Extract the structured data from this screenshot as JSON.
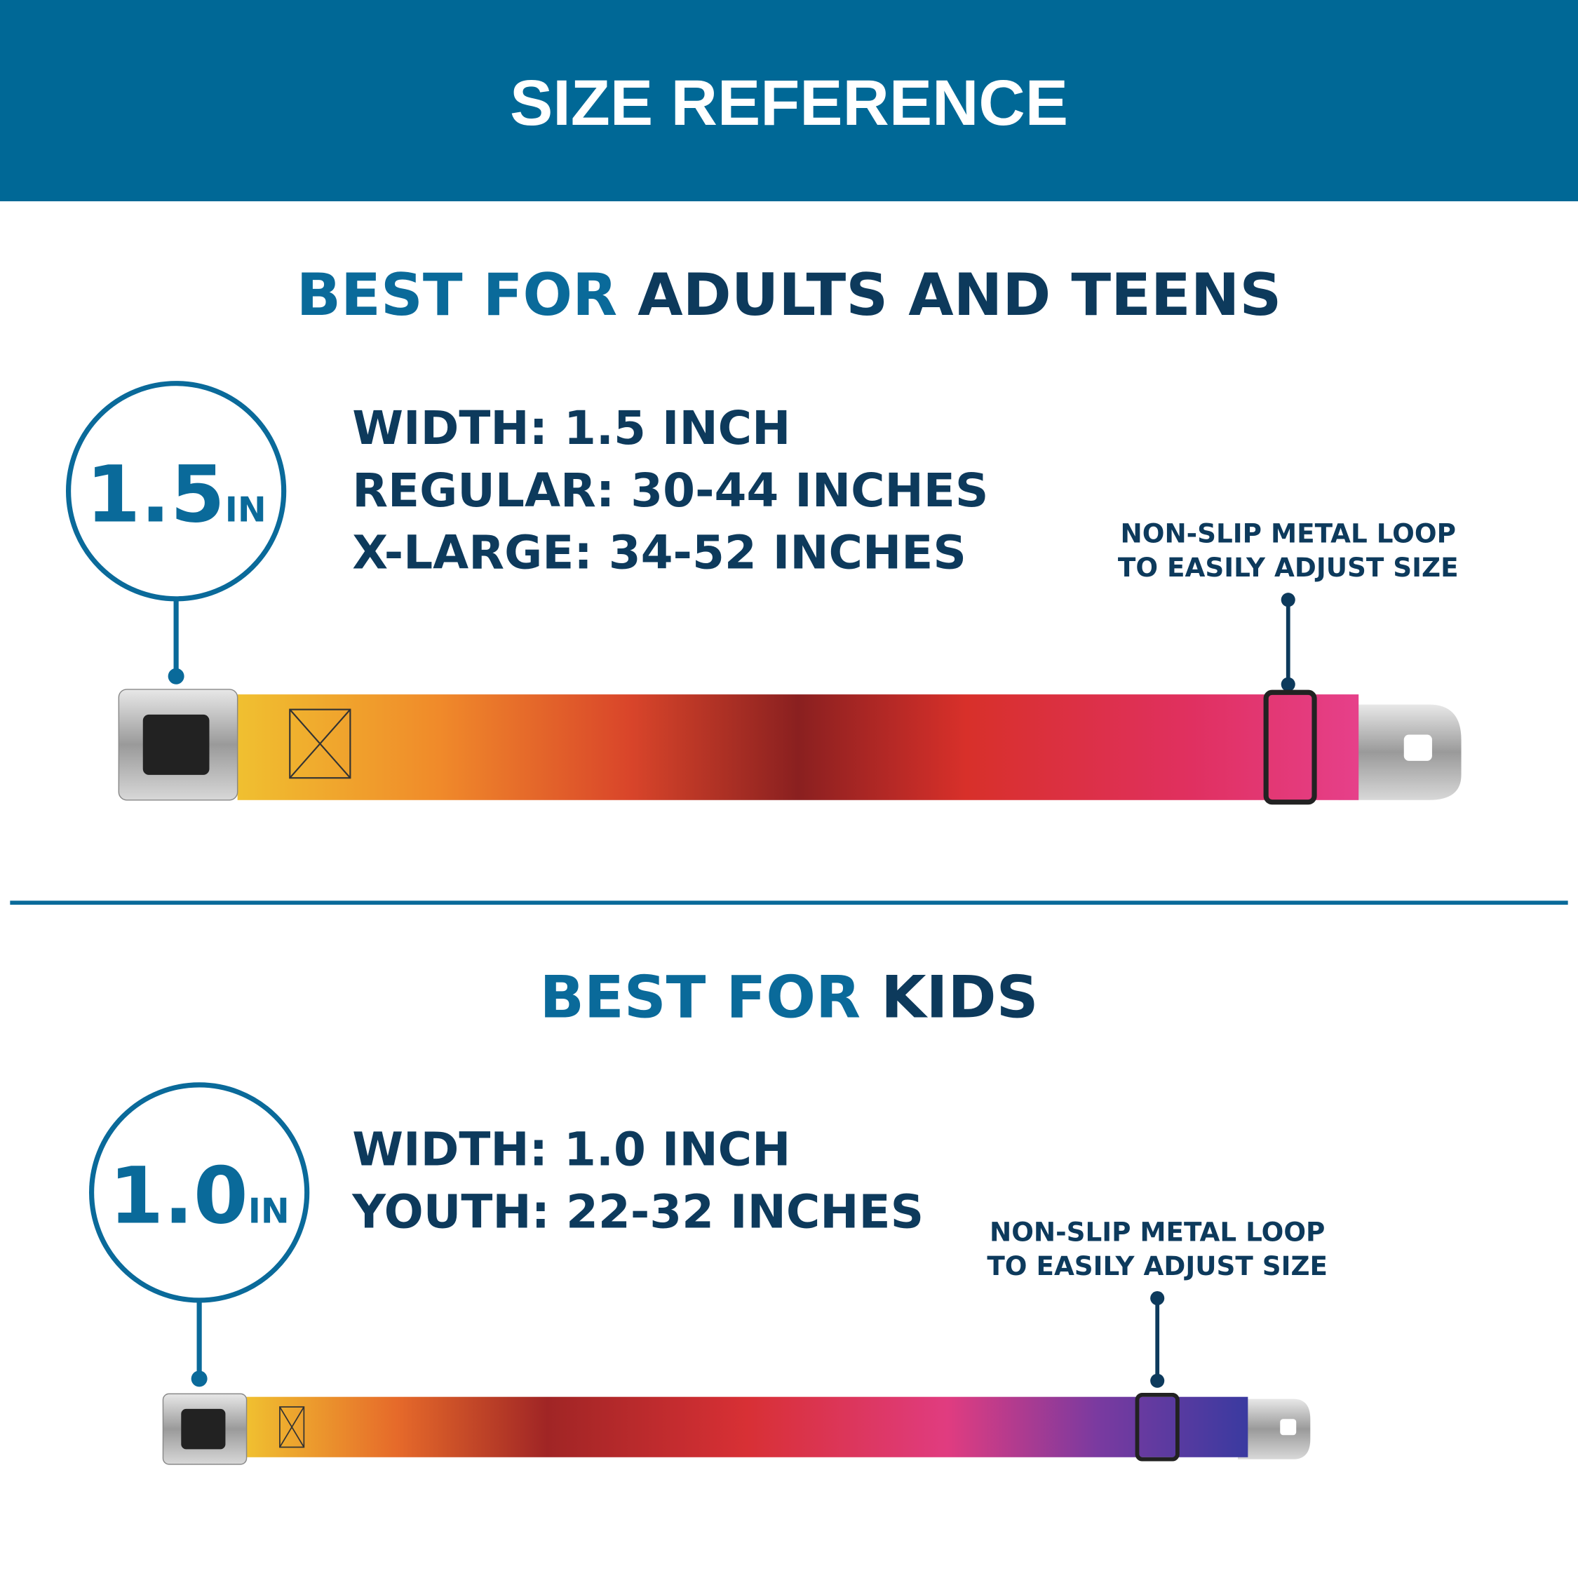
{
  "header": {
    "title": "SIZE REFERENCE"
  },
  "sections": [
    {
      "heading_prefix": "BEST FOR",
      "heading_main": "ADULTS AND TEENS",
      "badge_number": "1.5",
      "badge_unit": "IN",
      "specs": [
        "WIDTH: 1.5 INCH",
        "REGULAR: 30-44 INCHES",
        "X-LARGE: 34-52 INCHES"
      ],
      "callout": [
        "NON-SLIP METAL LOOP",
        "TO EASILY ADJUST SIZE"
      ]
    },
    {
      "heading_prefix": "BEST FOR",
      "heading_main": "KIDS",
      "badge_number": "1.0",
      "badge_unit": "IN",
      "specs": [
        "WIDTH: 1.0 INCH",
        "YOUTH: 22-32 INCHES"
      ],
      "callout": [
        "NON-SLIP METAL LOOP",
        "TO EASILY ADJUST SIZE"
      ]
    }
  ]
}
